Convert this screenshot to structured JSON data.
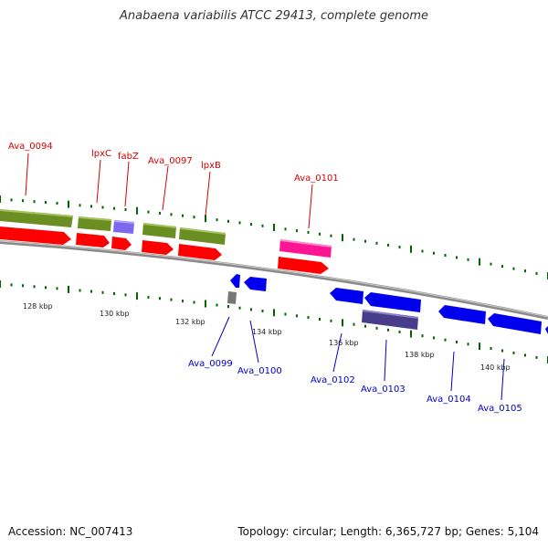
{
  "title": "Anabaena variabilis ATCC 29413, complete genome",
  "footer": {
    "accession": "Accession: NC_007413",
    "stats": "Topology: circular; Length: 6,365,727 bp; Genes: 5,104"
  },
  "colors": {
    "green": "#6b8e23",
    "red": "#ff0000",
    "purple": "#7b68ee",
    "pink": "#ff1493",
    "blue": "#0000ee",
    "darkslate": "#483d8b",
    "gray": "#808080",
    "backbone": "#888888",
    "tick": "#006400",
    "label_top": "#d40000",
    "label_bottom": "#0000c8"
  },
  "scale_labels": [
    "128 kbp",
    "130 kbp",
    "132 kbp",
    "134 kbp",
    "136 kbp",
    "138 kbp",
    "140 kbp"
  ],
  "gene_labels_top": [
    "Ava_0094",
    "lpxC",
    "fabZ",
    "Ava_0097",
    "lpxB",
    "Ava_0101"
  ],
  "gene_labels_bottom": [
    "Ava_0099",
    "Ava_0100",
    "Ava_0102",
    "Ava_0103",
    "Ava_0104",
    "Ava_0105"
  ]
}
